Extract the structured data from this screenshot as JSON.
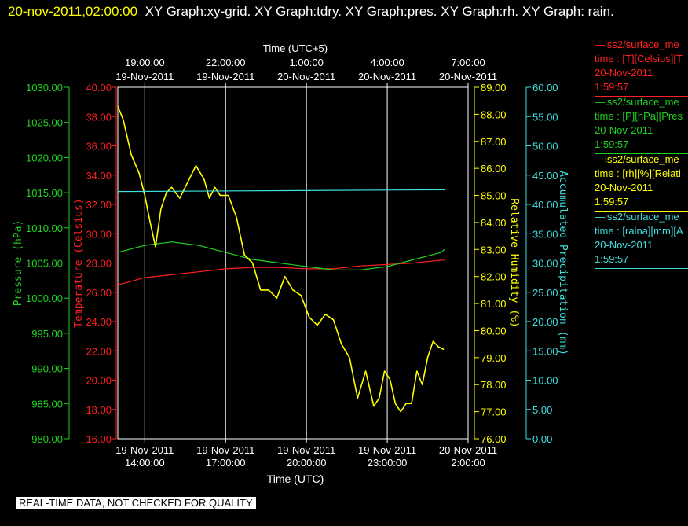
{
  "header": {
    "timestamp": "20-nov-2011,02:00:00",
    "graph_titles": "XY Graph:xy-grid.  XY Graph:tdry.  XY Graph:pres.  XY Graph:rh.  XY Graph: rain."
  },
  "quality_notice": "REAL-TIME DATA, NOT CHECKED FOR QUALITY",
  "colors": {
    "background": "#000000",
    "grid": "#ffffff",
    "temperature": "#ff2020",
    "pressure": "#20d020",
    "humidity": "#ffff00",
    "precipitation": "#40e0e0"
  },
  "legend": [
    {
      "line1": "—iss2/surface_me",
      "line2": "time : [T][Celsius][T",
      "line3": "20-Nov-2011",
      "line4": "1:59:57",
      "color": "#ff2020"
    },
    {
      "line1": "—iss2/surface_me",
      "line2": "time : [P][hPa][Pres",
      "line3": "20-Nov-2011",
      "line4": "1:59:57",
      "color": "#20d020"
    },
    {
      "line1": "—iss2/surface_me",
      "line2": "time : [rh][%][Relati",
      "line3": "20-Nov-2011",
      "line4": "1:59:57",
      "color": "#ffff00"
    },
    {
      "line1": "—iss2/surface_me",
      "line2": "time : [raina][mm][A",
      "line3": "20-Nov-2011",
      "line4": "1:59:57",
      "color": "#40e0e0"
    }
  ],
  "chart_data": {
    "type": "line",
    "x_bottom": {
      "label": "Time (UTC)",
      "range": [
        "19-Nov-2011 13:00:00",
        "20-Nov-2011 02:00:00"
      ],
      "ticks": [
        {
          "t": 1,
          "date": "19-Nov-2011",
          "time": "14:00:00"
        },
        {
          "t": 4,
          "date": "19-Nov-2011",
          "time": "17:00:00"
        },
        {
          "t": 7,
          "date": "19-Nov-2011",
          "time": "20:00:00"
        },
        {
          "t": 10,
          "date": "19-Nov-2011",
          "time": "23:00:00"
        },
        {
          "t": 13,
          "date": "20-Nov-2011",
          "time": "2:00:00"
        }
      ]
    },
    "x_top": {
      "label": "Time (UTC+5)",
      "ticks": [
        {
          "t": 1,
          "date": "19-Nov-2011",
          "time": "19:00:00"
        },
        {
          "t": 4,
          "date": "19-Nov-2011",
          "time": "22:00:00"
        },
        {
          "t": 7,
          "date": "20-Nov-2011",
          "time": "1:00:00"
        },
        {
          "t": 10,
          "date": "20-Nov-2011",
          "time": "4:00:00"
        },
        {
          "t": 13,
          "date": "20-Nov-2011",
          "time": "7:00:00"
        }
      ]
    },
    "axes": {
      "pressure": {
        "label": "Pressure (hPa)",
        "min": 980,
        "max": 1030,
        "step": 5,
        "decimals": 2
      },
      "temperature": {
        "label": "Temperature (Celsius)",
        "min": 16,
        "max": 40,
        "step": 2,
        "decimals": 2
      },
      "humidity": {
        "label": "Relative Humidity (%)",
        "min": 76,
        "max": 89,
        "step": 1,
        "decimals": 2
      },
      "precipitation": {
        "label": "Accumulated Precipitation (mm)",
        "min": 0,
        "max": 60,
        "step": 5,
        "decimals": 2
      }
    },
    "series": [
      {
        "axis": "temperature",
        "x": [
          0,
          1,
          2,
          3,
          4,
          5,
          6,
          7,
          8,
          9,
          10,
          11,
          12,
          12.15
        ],
        "y": [
          26.5,
          27.0,
          27.2,
          27.4,
          27.6,
          27.7,
          27.7,
          27.6,
          27.6,
          27.8,
          27.9,
          28.0,
          28.2,
          28.2
        ]
      },
      {
        "axis": "pressure",
        "x": [
          0,
          1,
          2,
          3,
          4,
          5,
          6,
          7,
          8,
          9,
          10,
          11,
          12,
          12.15
        ],
        "y": [
          1006.5,
          1007.5,
          1008.0,
          1007.5,
          1006.5,
          1005.5,
          1005.0,
          1004.5,
          1004.0,
          1004.0,
          1004.5,
          1005.5,
          1006.5,
          1007.0
        ]
      },
      {
        "axis": "humidity",
        "x": [
          0,
          0.2,
          0.5,
          0.8,
          1.0,
          1.2,
          1.4,
          1.6,
          1.8,
          2.0,
          2.3,
          2.6,
          2.9,
          3.2,
          3.4,
          3.6,
          3.8,
          4.1,
          4.4,
          4.7,
          5.0,
          5.3,
          5.6,
          5.9,
          6.2,
          6.5,
          6.8,
          7.1,
          7.4,
          7.7,
          8.0,
          8.3,
          8.6,
          8.9,
          9.2,
          9.5,
          9.7,
          9.9,
          10.1,
          10.3,
          10.5,
          10.7,
          10.9,
          11.1,
          11.3,
          11.5,
          11.7,
          11.9,
          12.1
        ],
        "y": [
          88.3,
          87.8,
          86.5,
          85.8,
          85.0,
          84.0,
          83.1,
          84.5,
          85.1,
          85.3,
          84.9,
          85.5,
          86.1,
          85.6,
          84.9,
          85.3,
          85.0,
          85.0,
          84.2,
          82.8,
          82.5,
          81.5,
          81.5,
          81.2,
          82.0,
          81.5,
          81.3,
          80.5,
          80.2,
          80.6,
          80.4,
          79.5,
          79.0,
          77.5,
          78.5,
          77.2,
          77.5,
          78.5,
          78.2,
          77.3,
          77.0,
          77.3,
          77.3,
          78.5,
          78.0,
          79.0,
          79.6,
          79.4,
          79.3
        ]
      },
      {
        "axis": "precipitation",
        "x": [
          0,
          12.15
        ],
        "y": [
          42.2,
          42.5
        ]
      }
    ]
  }
}
